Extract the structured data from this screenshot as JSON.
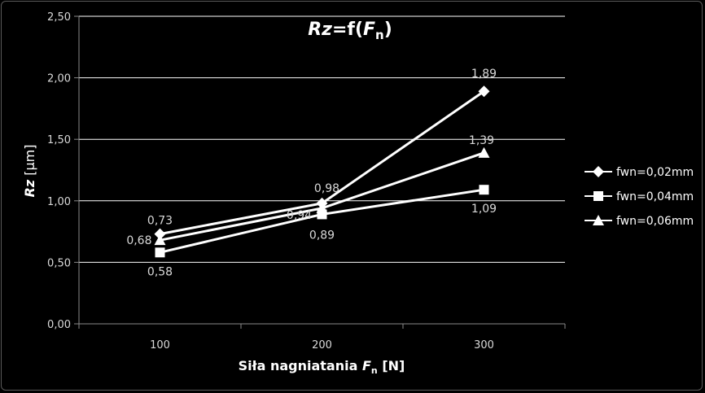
{
  "chart_data": {
    "type": "line",
    "title_parts": {
      "main": "Rz",
      "eq": "=f(",
      "var": "F",
      "sub": "n",
      "close": ")"
    },
    "xlabel_parts": {
      "prefix": "Siła nagniatania ",
      "var": "F",
      "sub": "n",
      "suffix": " [N]"
    },
    "ylabel_parts": {
      "var": "Rz",
      "suffix": " [µm]"
    },
    "categories": [
      "100",
      "200",
      "300"
    ],
    "ylim": [
      0,
      2.5
    ],
    "yticks": [
      "0,00",
      "0,50",
      "1,00",
      "1,50",
      "2,00",
      "2,50"
    ],
    "grid": true,
    "legend_position": "right",
    "colors": {
      "series": "#ffffff",
      "background": "#000000",
      "grid": "#ffffff",
      "text": "#d9d9d9"
    },
    "series": [
      {
        "name": "fwn=0,02mm",
        "marker": "diamond",
        "values": [
          0.73,
          0.98,
          1.89
        ],
        "labels": [
          "0,73",
          "0,98",
          "1,89"
        ]
      },
      {
        "name": "fwn=0,04mm",
        "marker": "square",
        "values": [
          0.58,
          0.89,
          1.09
        ],
        "labels": [
          "0,58",
          "0,89",
          "1,09"
        ]
      },
      {
        "name": "fwn=0,06mm",
        "marker": "triangle",
        "values": [
          0.68,
          0.94,
          1.39
        ],
        "labels": [
          "0,68",
          "0,94",
          "1,39"
        ]
      }
    ]
  }
}
